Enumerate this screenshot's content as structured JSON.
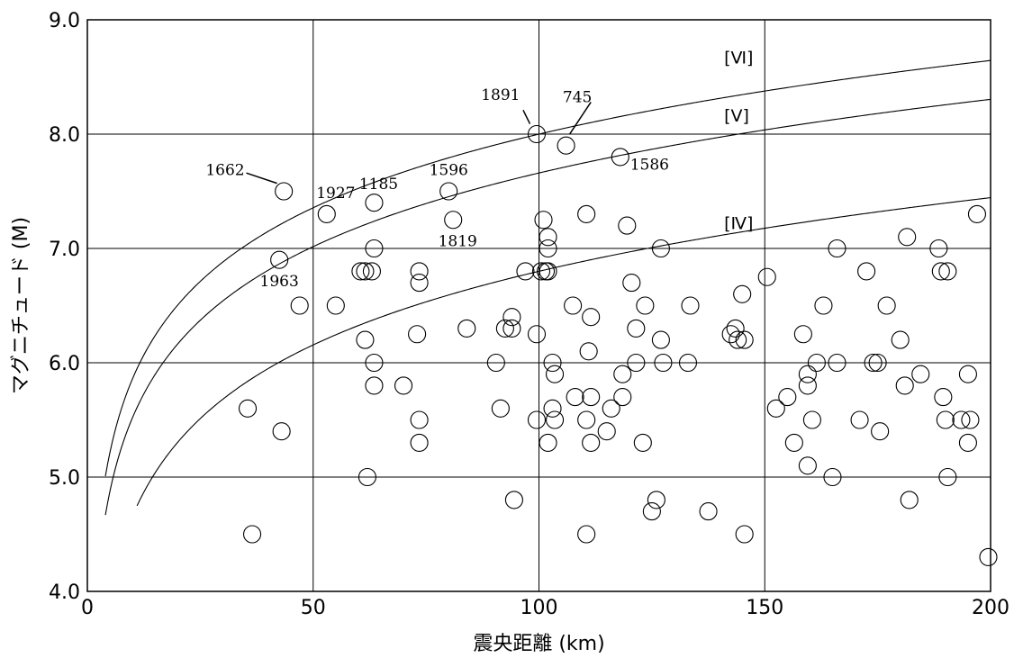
{
  "chart_data": {
    "type": "scatter",
    "title": "",
    "xlabel": "震央距離 (km)",
    "ylabel": "マグニチュード (M)",
    "xlim": [
      0,
      200
    ],
    "ylim": [
      4.0,
      9.0
    ],
    "x_ticks": [
      0,
      50,
      100,
      150,
      200
    ],
    "x_tick_labels": [
      "0",
      "50",
      "100",
      "150",
      "200"
    ],
    "y_ticks": [
      4.0,
      5.0,
      6.0,
      7.0,
      8.0,
      9.0
    ],
    "y_tick_labels": [
      "4.0",
      "5.0",
      "6.0",
      "7.0",
      "8.0",
      "9.0"
    ],
    "grid": true,
    "marker": "open-circle",
    "points": [
      [
        35.5,
        5.6
      ],
      [
        36.5,
        4.5
      ],
      [
        42.5,
        6.9
      ],
      [
        43,
        5.4
      ],
      [
        43.5,
        7.5
      ],
      [
        47,
        6.5
      ],
      [
        53,
        7.3
      ],
      [
        55,
        6.5
      ],
      [
        60.5,
        6.8
      ],
      [
        61.5,
        6.8
      ],
      [
        61.5,
        6.2
      ],
      [
        62,
        5.0
      ],
      [
        63,
        6.8
      ],
      [
        63.5,
        7.4
      ],
      [
        63.5,
        7.0
      ],
      [
        63.5,
        6.0
      ],
      [
        63.5,
        5.8
      ],
      [
        70,
        5.8
      ],
      [
        73,
        6.25
      ],
      [
        73.5,
        6.8
      ],
      [
        73.5,
        6.7
      ],
      [
        73.5,
        5.5
      ],
      [
        73.5,
        5.3
      ],
      [
        80,
        7.5
      ],
      [
        81,
        7.25
      ],
      [
        84,
        6.3
      ],
      [
        90.5,
        6.0
      ],
      [
        91.5,
        5.6
      ],
      [
        92.5,
        6.3
      ],
      [
        94,
        6.4
      ],
      [
        94,
        6.3
      ],
      [
        94.5,
        4.8
      ],
      [
        97,
        6.8
      ],
      [
        99.5,
        8.0
      ],
      [
        99.5,
        6.25
      ],
      [
        99.5,
        5.5
      ],
      [
        100.5,
        6.8
      ],
      [
        101,
        7.25
      ],
      [
        101.5,
        6.8
      ],
      [
        102,
        7.1
      ],
      [
        102,
        7.0
      ],
      [
        102,
        6.8
      ],
      [
        102,
        5.3
      ],
      [
        103,
        6.0
      ],
      [
        103,
        5.6
      ],
      [
        103.5,
        5.9
      ],
      [
        103.5,
        5.5
      ],
      [
        106,
        7.9
      ],
      [
        107.5,
        6.5
      ],
      [
        108,
        5.7
      ],
      [
        110.5,
        7.3
      ],
      [
        110.5,
        5.5
      ],
      [
        110.5,
        4.5
      ],
      [
        111,
        6.1
      ],
      [
        111.5,
        6.4
      ],
      [
        111.5,
        5.7
      ],
      [
        111.5,
        5.3
      ],
      [
        115,
        5.4
      ],
      [
        116,
        5.6
      ],
      [
        118,
        7.8
      ],
      [
        118.5,
        5.9
      ],
      [
        118.5,
        5.7
      ],
      [
        119.5,
        7.2
      ],
      [
        120.5,
        6.7
      ],
      [
        121.5,
        6.3
      ],
      [
        121.5,
        6.0
      ],
      [
        123,
        5.3
      ],
      [
        123.5,
        6.5
      ],
      [
        125,
        4.7
      ],
      [
        126,
        4.8
      ],
      [
        127,
        7.0
      ],
      [
        127,
        6.2
      ],
      [
        127.5,
        6.0
      ],
      [
        133,
        6.0
      ],
      [
        133.5,
        6.5
      ],
      [
        137.5,
        4.7
      ],
      [
        142.5,
        6.25
      ],
      [
        143.5,
        6.3
      ],
      [
        144,
        6.2
      ],
      [
        145,
        6.6
      ],
      [
        145.5,
        6.2
      ],
      [
        145.5,
        4.5
      ],
      [
        150.5,
        6.75
      ],
      [
        152.5,
        5.6
      ],
      [
        155,
        5.7
      ],
      [
        156.5,
        5.3
      ],
      [
        158.5,
        6.25
      ],
      [
        159.5,
        5.9
      ],
      [
        159.5,
        5.8
      ],
      [
        159.5,
        5.1
      ],
      [
        160.5,
        5.5
      ],
      [
        161.5,
        6.0
      ],
      [
        163,
        6.5
      ],
      [
        165,
        5.0
      ],
      [
        166,
        7.0
      ],
      [
        166,
        6.0
      ],
      [
        171,
        5.5
      ],
      [
        172.5,
        6.8
      ],
      [
        174,
        6.0
      ],
      [
        175,
        6.0
      ],
      [
        175.5,
        5.4
      ],
      [
        177,
        6.5
      ],
      [
        180,
        6.2
      ],
      [
        181,
        5.8
      ],
      [
        181.5,
        7.1
      ],
      [
        182,
        4.8
      ],
      [
        184.5,
        5.9
      ],
      [
        188.5,
        7.0
      ],
      [
        189,
        6.8
      ],
      [
        189.5,
        5.7
      ],
      [
        190,
        5.5
      ],
      [
        190.5,
        6.8
      ],
      [
        190.5,
        5.0
      ],
      [
        193.5,
        5.5
      ],
      [
        195,
        5.9
      ],
      [
        195,
        5.3
      ],
      [
        195.5,
        5.5
      ],
      [
        197,
        7.3
      ],
      [
        199.5,
        4.3
      ]
    ],
    "curves": [
      {
        "label": "[Ⅵ]",
        "a": 3.72,
        "b": 2.14,
        "x_start": 4
      },
      {
        "label": "[Ⅴ]",
        "a": 3.38,
        "b": 2.14,
        "x_start": 4
      },
      {
        "label": "[Ⅳ]",
        "a": 2.52,
        "b": 2.14,
        "x_start": 11
      }
    ],
    "curve_label_positions": [
      {
        "label": "[Ⅵ]",
        "x": 141,
        "y": 8.62
      },
      {
        "label": "[Ⅴ]",
        "x": 141,
        "y": 8.11
      },
      {
        "label": "[Ⅳ]",
        "x": 141,
        "y": 7.17
      }
    ],
    "annotations": [
      {
        "text": "1891",
        "x": 99.5,
        "y": 8.0,
        "tx": 91.5,
        "ty": 8.3
      },
      {
        "text": "745",
        "x": 106,
        "y": 7.9,
        "tx": 108.5,
        "ty": 8.28
      },
      {
        "text": "1662",
        "x": 43.5,
        "y": 7.5,
        "tx": 30.5,
        "ty": 7.64
      },
      {
        "text": "1927",
        "x": 53,
        "y": 7.3,
        "tx": 55,
        "ty": 7.44
      },
      {
        "text": "1185",
        "x": 63.5,
        "y": 7.4,
        "tx": 64.5,
        "ty": 7.52
      },
      {
        "text": "1596",
        "x": 80,
        "y": 7.5,
        "tx": 80,
        "ty": 7.64
      },
      {
        "text": "1586",
        "x": 118,
        "y": 7.8,
        "tx": 124.5,
        "ty": 7.69
      },
      {
        "text": "1819",
        "x": 81,
        "y": 7.25,
        "tx": 82,
        "ty": 7.02
      },
      {
        "text": "1963",
        "x": 42.5,
        "y": 6.9,
        "tx": 42.5,
        "ty": 6.67
      }
    ]
  }
}
